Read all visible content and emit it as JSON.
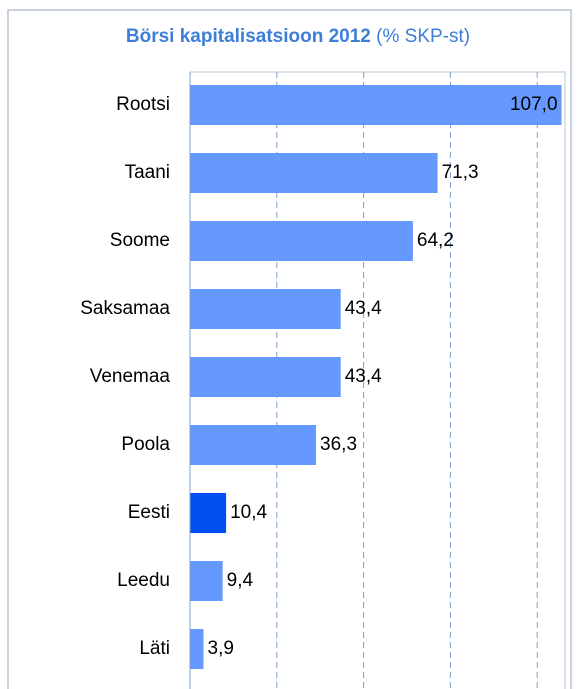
{
  "chart_data": {
    "type": "bar",
    "orientation": "horizontal",
    "title": "Börsi kapitalisatsioon 2012",
    "subtitle": "(% SKP-st)",
    "categories": [
      "Rootsi",
      "Taani",
      "Soome",
      "Saksamaa",
      "Venemaa",
      "Poola",
      "Eesti",
      "Leedu",
      "Läti"
    ],
    "values": [
      107.0,
      71.3,
      64.2,
      43.4,
      43.4,
      36.3,
      10.4,
      9.4,
      3.9
    ],
    "value_labels": [
      "107,0",
      "71,3",
      "64,2",
      "43,4",
      "43,4",
      "36,3",
      "10,4",
      "9,4",
      "3,9"
    ],
    "colors": [
      "#6699ff",
      "#6699ff",
      "#6699ff",
      "#6699ff",
      "#6699ff",
      "#6699ff",
      "#0050f0",
      "#6699ff",
      "#6699ff"
    ],
    "xlim": [
      0,
      108
    ],
    "xticks": [
      25,
      50,
      75,
      100
    ],
    "grid": true
  }
}
